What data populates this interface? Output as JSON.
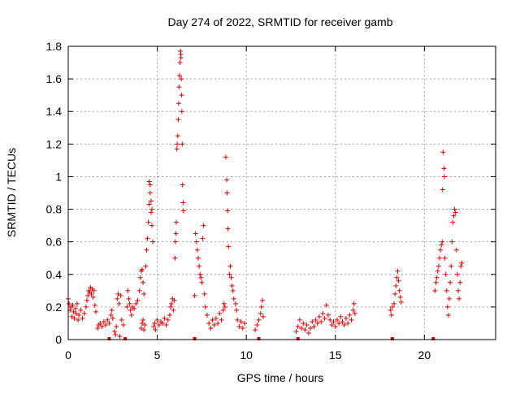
{
  "chart_data": {
    "type": "scatter",
    "title": "Day 274 of 2022, SRMTID for receiver gamb",
    "xlabel": "GPS time / hours",
    "ylabel": "SRMTID / TECUs",
    "xlim": [
      0,
      24
    ],
    "ylim": [
      0,
      1.8
    ],
    "xticks": [
      0,
      5,
      10,
      15,
      20
    ],
    "yticks": [
      0,
      0.2,
      0.4,
      0.6,
      0.8,
      1,
      1.2,
      1.4,
      1.6,
      1.8
    ],
    "xtick_labels": [
      "0",
      "5",
      "10",
      "15",
      "20"
    ],
    "ytick_labels": [
      "0",
      "0.2",
      "0.4",
      "0.6",
      "0.8",
      "1",
      "1.2",
      "1.4",
      "1.6",
      "1.8"
    ],
    "grid": true,
    "marker": "plus",
    "color": "#e00000",
    "series": [
      {
        "name": "SRMTID",
        "points": [
          [
            0.0,
            0.25
          ],
          [
            0.05,
            0.22
          ],
          [
            0.1,
            0.18
          ],
          [
            0.15,
            0.2
          ],
          [
            0.2,
            0.14
          ],
          [
            0.25,
            0.21
          ],
          [
            0.3,
            0.17
          ],
          [
            0.35,
            0.13
          ],
          [
            0.4,
            0.19
          ],
          [
            0.45,
            0.16
          ],
          [
            0.5,
            0.22
          ],
          [
            0.55,
            0.12
          ],
          [
            0.6,
            0.15
          ],
          [
            0.7,
            0.18
          ],
          [
            0.8,
            0.13
          ],
          [
            0.9,
            0.16
          ],
          [
            1.0,
            0.2
          ],
          [
            1.05,
            0.24
          ],
          [
            1.1,
            0.27
          ],
          [
            1.15,
            0.3
          ],
          [
            1.2,
            0.29
          ],
          [
            1.25,
            0.32
          ],
          [
            1.3,
            0.28
          ],
          [
            1.35,
            0.31
          ],
          [
            1.4,
            0.26
          ],
          [
            1.45,
            0.3
          ],
          [
            1.5,
            0.21
          ],
          [
            1.55,
            0.17
          ],
          [
            1.65,
            0.07
          ],
          [
            1.7,
            0.09
          ],
          [
            1.8,
            0.1
          ],
          [
            1.9,
            0.08
          ],
          [
            2.0,
            0.11
          ],
          [
            2.1,
            0.09
          ],
          [
            2.2,
            0.12
          ],
          [
            2.3,
            0.1
          ],
          [
            2.4,
            0.15
          ],
          [
            2.45,
            0.18
          ],
          [
            2.5,
            0.13
          ],
          [
            2.6,
            0.05
          ],
          [
            2.65,
            0.03
          ],
          [
            2.7,
            0.08
          ],
          [
            2.75,
            0.25
          ],
          [
            2.8,
            0.28
          ],
          [
            2.85,
            0.22
          ],
          [
            2.9,
            0.02
          ],
          [
            2.95,
            0.27
          ],
          [
            3.0,
            0.12
          ],
          [
            3.1,
            0.09
          ],
          [
            3.3,
            0.2
          ],
          [
            3.35,
            0.3
          ],
          [
            3.4,
            0.25
          ],
          [
            3.45,
            0.22
          ],
          [
            3.5,
            0.18
          ],
          [
            3.55,
            0.15
          ],
          [
            3.6,
            0.2
          ],
          [
            3.7,
            0.19
          ],
          [
            3.8,
            0.22
          ],
          [
            3.9,
            0.24
          ],
          [
            4.0,
            0.3
          ],
          [
            4.05,
            0.38
          ],
          [
            4.1,
            0.42
          ],
          [
            4.15,
            0.43
          ],
          [
            4.2,
            0.35
          ],
          [
            4.25,
            0.28
          ],
          [
            4.1,
            0.07
          ],
          [
            4.15,
            0.1
          ],
          [
            4.2,
            0.12
          ],
          [
            4.25,
            0.06
          ],
          [
            4.3,
            0.09
          ],
          [
            4.35,
            0.45
          ],
          [
            4.4,
            0.55
          ],
          [
            4.45,
            0.62
          ],
          [
            4.5,
            0.72
          ],
          [
            4.55,
            0.83
          ],
          [
            4.55,
            0.97
          ],
          [
            4.6,
            0.95
          ],
          [
            4.6,
            0.9
          ],
          [
            4.65,
            0.85
          ],
          [
            4.65,
            0.78
          ],
          [
            4.7,
            0.8
          ],
          [
            4.7,
            0.7
          ],
          [
            4.75,
            0.6
          ],
          [
            4.8,
            0.08
          ],
          [
            4.85,
            0.1
          ],
          [
            4.9,
            0.06
          ],
          [
            5.0,
            0.12
          ],
          [
            5.1,
            0.09
          ],
          [
            5.2,
            0.11
          ],
          [
            5.3,
            0.1
          ],
          [
            5.4,
            0.13
          ],
          [
            5.5,
            0.09
          ],
          [
            5.6,
            0.12
          ],
          [
            5.7,
            0.15
          ],
          [
            5.75,
            0.2
          ],
          [
            5.8,
            0.22
          ],
          [
            5.85,
            0.25
          ],
          [
            5.9,
            0.18
          ],
          [
            5.95,
            0.24
          ],
          [
            6.0,
            0.5
          ],
          [
            6.02,
            0.6
          ],
          [
            6.05,
            0.65
          ],
          [
            6.07,
            0.72
          ],
          [
            6.1,
            1.17
          ],
          [
            6.12,
            1.2
          ],
          [
            6.15,
            1.25
          ],
          [
            6.18,
            1.35
          ],
          [
            6.2,
            1.45
          ],
          [
            6.22,
            1.55
          ],
          [
            6.25,
            1.62
          ],
          [
            6.28,
            1.7
          ],
          [
            6.3,
            1.77
          ],
          [
            6.32,
            1.75
          ],
          [
            6.33,
            1.73
          ],
          [
            6.35,
            1.6
          ],
          [
            6.37,
            1.5
          ],
          [
            6.38,
            1.4
          ],
          [
            6.4,
            1.2
          ],
          [
            6.42,
            0.95
          ],
          [
            6.45,
            0.84
          ],
          [
            6.47,
            0.79
          ],
          [
            7.1,
            0.27
          ],
          [
            7.15,
            0.65
          ],
          [
            7.2,
            0.6
          ],
          [
            7.25,
            0.55
          ],
          [
            7.3,
            0.5
          ],
          [
            7.35,
            0.45
          ],
          [
            7.4,
            0.4
          ],
          [
            7.45,
            0.38
          ],
          [
            7.5,
            0.35
          ],
          [
            7.55,
            0.62
          ],
          [
            7.6,
            0.7
          ],
          [
            7.65,
            0.28
          ],
          [
            7.7,
            0.2
          ],
          [
            7.8,
            0.15
          ],
          [
            7.9,
            0.1
          ],
          [
            8.0,
            0.07
          ],
          [
            8.1,
            0.12
          ],
          [
            8.2,
            0.09
          ],
          [
            8.3,
            0.13
          ],
          [
            8.4,
            0.1
          ],
          [
            8.5,
            0.16
          ],
          [
            8.6,
            0.12
          ],
          [
            8.7,
            0.18
          ],
          [
            8.75,
            0.22
          ],
          [
            8.8,
            0.2
          ],
          [
            8.85,
            1.12
          ],
          [
            8.9,
            0.98
          ],
          [
            8.92,
            0.9
          ],
          [
            8.95,
            0.79
          ],
          [
            8.97,
            0.68
          ],
          [
            9.0,
            0.57
          ],
          [
            9.05,
            0.4
          ],
          [
            9.1,
            0.45
          ],
          [
            9.15,
            0.38
          ],
          [
            9.2,
            0.33
          ],
          [
            9.25,
            0.3
          ],
          [
            9.3,
            0.25
          ],
          [
            9.4,
            0.22
          ],
          [
            9.45,
            0.18
          ],
          [
            9.5,
            0.12
          ],
          [
            9.6,
            0.08
          ],
          [
            9.7,
            0.11
          ],
          [
            9.8,
            0.07
          ],
          [
            9.9,
            0.1
          ],
          [
            10.5,
            0.06
          ],
          [
            10.6,
            0.09
          ],
          [
            10.7,
            0.12
          ],
          [
            10.8,
            0.16
          ],
          [
            10.85,
            0.2
          ],
          [
            10.9,
            0.24
          ],
          [
            10.95,
            0.14
          ],
          [
            12.8,
            0.05
          ],
          [
            12.9,
            0.08
          ],
          [
            13.0,
            0.12
          ],
          [
            13.1,
            0.07
          ],
          [
            13.2,
            0.1
          ],
          [
            13.3,
            0.06
          ],
          [
            13.4,
            0.09
          ],
          [
            13.5,
            0.04
          ],
          [
            13.6,
            0.07
          ],
          [
            13.7,
            0.11
          ],
          [
            13.8,
            0.08
          ],
          [
            13.9,
            0.12
          ],
          [
            14.0,
            0.1
          ],
          [
            14.1,
            0.14
          ],
          [
            14.2,
            0.11
          ],
          [
            14.3,
            0.16
          ],
          [
            14.4,
            0.13
          ],
          [
            14.5,
            0.21
          ],
          [
            14.6,
            0.15
          ],
          [
            14.7,
            0.12
          ],
          [
            14.8,
            0.09
          ],
          [
            14.9,
            0.11
          ],
          [
            15.0,
            0.08
          ],
          [
            15.1,
            0.12
          ],
          [
            15.2,
            0.1
          ],
          [
            15.3,
            0.14
          ],
          [
            15.4,
            0.11
          ],
          [
            15.5,
            0.09
          ],
          [
            15.6,
            0.13
          ],
          [
            15.7,
            0.1
          ],
          [
            15.8,
            0.15
          ],
          [
            15.9,
            0.12
          ],
          [
            16.0,
            0.18
          ],
          [
            16.05,
            0.22
          ],
          [
            16.1,
            0.16
          ],
          [
            18.1,
            0.18
          ],
          [
            18.15,
            0.15
          ],
          [
            18.2,
            0.2
          ],
          [
            18.3,
            0.22
          ],
          [
            18.35,
            0.28
          ],
          [
            18.4,
            0.33
          ],
          [
            18.45,
            0.38
          ],
          [
            18.5,
            0.42
          ],
          [
            18.55,
            0.36
          ],
          [
            18.6,
            0.3
          ],
          [
            18.65,
            0.26
          ],
          [
            18.7,
            0.23
          ],
          [
            20.6,
            0.3
          ],
          [
            20.65,
            0.35
          ],
          [
            20.7,
            0.38
          ],
          [
            20.75,
            0.42
          ],
          [
            20.8,
            0.45
          ],
          [
            20.85,
            0.5
          ],
          [
            20.9,
            0.55
          ],
          [
            20.95,
            0.58
          ],
          [
            21.0,
            0.6
          ],
          [
            21.02,
            0.92
          ],
          [
            21.05,
            1.15
          ],
          [
            21.1,
            1.05
          ],
          [
            21.12,
            1.0
          ],
          [
            21.15,
            0.5
          ],
          [
            21.2,
            0.4
          ],
          [
            21.25,
            0.3
          ],
          [
            21.3,
            0.2
          ],
          [
            21.35,
            0.15
          ],
          [
            21.4,
            0.25
          ],
          [
            21.45,
            0.35
          ],
          [
            21.5,
            0.45
          ],
          [
            21.55,
            0.6
          ],
          [
            21.6,
            0.72
          ],
          [
            21.65,
            0.76
          ],
          [
            21.7,
            0.8
          ],
          [
            21.75,
            0.78
          ],
          [
            21.8,
            0.55
          ],
          [
            21.85,
            0.4
          ],
          [
            21.9,
            0.3
          ],
          [
            21.95,
            0.25
          ],
          [
            22.0,
            0.35
          ],
          [
            22.05,
            0.45
          ],
          [
            22.1,
            0.47
          ]
        ]
      }
    ],
    "gap_markers_x": [
      2.3,
      3.2,
      7.1,
      10.7,
      12.9,
      18.2,
      20.5
    ]
  }
}
